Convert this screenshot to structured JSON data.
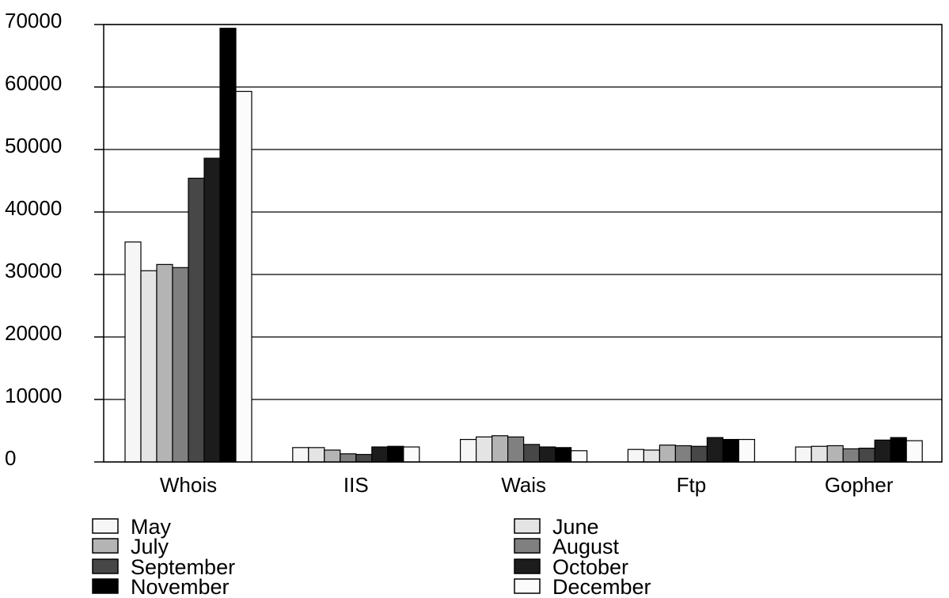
{
  "chart_data": {
    "type": "bar",
    "title": "",
    "xlabel": "",
    "ylabel": "",
    "ylim": [
      0,
      70000
    ],
    "yticks": [
      "0",
      "10000",
      "20000",
      "30000",
      "40000",
      "50000",
      "60000",
      "70000"
    ],
    "grid": true,
    "legend_position": "bottom",
    "categories": [
      "Whois",
      "IIS",
      "Wais",
      "Ftp",
      "Gopher"
    ],
    "series": [
      {
        "name": "May",
        "color": "#f6f6f6",
        "values": [
          35200,
          2300,
          3600,
          2000,
          2400
        ]
      },
      {
        "name": "June",
        "color": "#e4e4e4",
        "values": [
          30600,
          2300,
          4000,
          1900,
          2500
        ]
      },
      {
        "name": "July",
        "color": "#b4b4b4",
        "values": [
          31600,
          1900,
          4200,
          2700,
          2600
        ]
      },
      {
        "name": "August",
        "color": "#808080",
        "values": [
          31100,
          1300,
          4000,
          2600,
          2100
        ]
      },
      {
        "name": "September",
        "color": "#474747",
        "values": [
          45400,
          1200,
          2800,
          2500,
          2200
        ]
      },
      {
        "name": "October",
        "color": "#1c1c1c",
        "values": [
          48600,
          2400,
          2400,
          3900,
          3500
        ]
      },
      {
        "name": "November",
        "color": "#000000",
        "values": [
          69400,
          2500,
          2300,
          3600,
          3900
        ]
      },
      {
        "name": "December",
        "color": "#fbfbfb",
        "values": [
          59300,
          2400,
          1800,
          3600,
          3400
        ]
      }
    ]
  }
}
